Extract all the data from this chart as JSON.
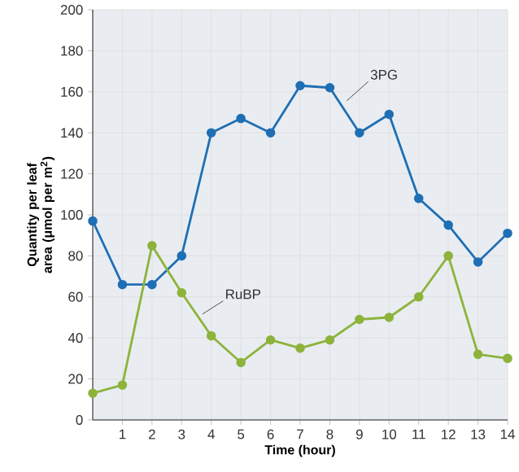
{
  "chart_data": {
    "type": "line",
    "xlabel": "Time (hour)",
    "ylabel": "Quantity per leaf area (μmol per m$^{2}$)",
    "x": [
      0,
      1,
      2,
      3,
      4,
      5,
      6,
      7,
      8,
      9,
      10,
      11,
      12,
      13,
      14
    ],
    "series": [
      {
        "name": "3PG",
        "color": "#1f6fb5",
        "values": [
          97,
          66,
          66,
          80,
          140,
          147,
          140,
          163,
          162,
          140,
          149,
          108,
          95,
          77,
          91
        ]
      },
      {
        "name": "RuBP",
        "color": "#8db33a",
        "values": [
          13,
          17,
          85,
          62,
          41,
          28,
          39,
          35,
          39,
          49,
          50,
          60,
          80,
          32,
          30
        ]
      }
    ],
    "xlim": [
      0,
      14
    ],
    "xticks": [
      1,
      2,
      3,
      4,
      5,
      6,
      7,
      8,
      9,
      10,
      11,
      12,
      13,
      14
    ],
    "ylim": [
      0,
      200
    ],
    "yticks": [
      0,
      20,
      40,
      60,
      80,
      100,
      120,
      140,
      160,
      180,
      200
    ],
    "grid": true,
    "marker": "circle",
    "line_style": "solid",
    "legend": false
  }
}
